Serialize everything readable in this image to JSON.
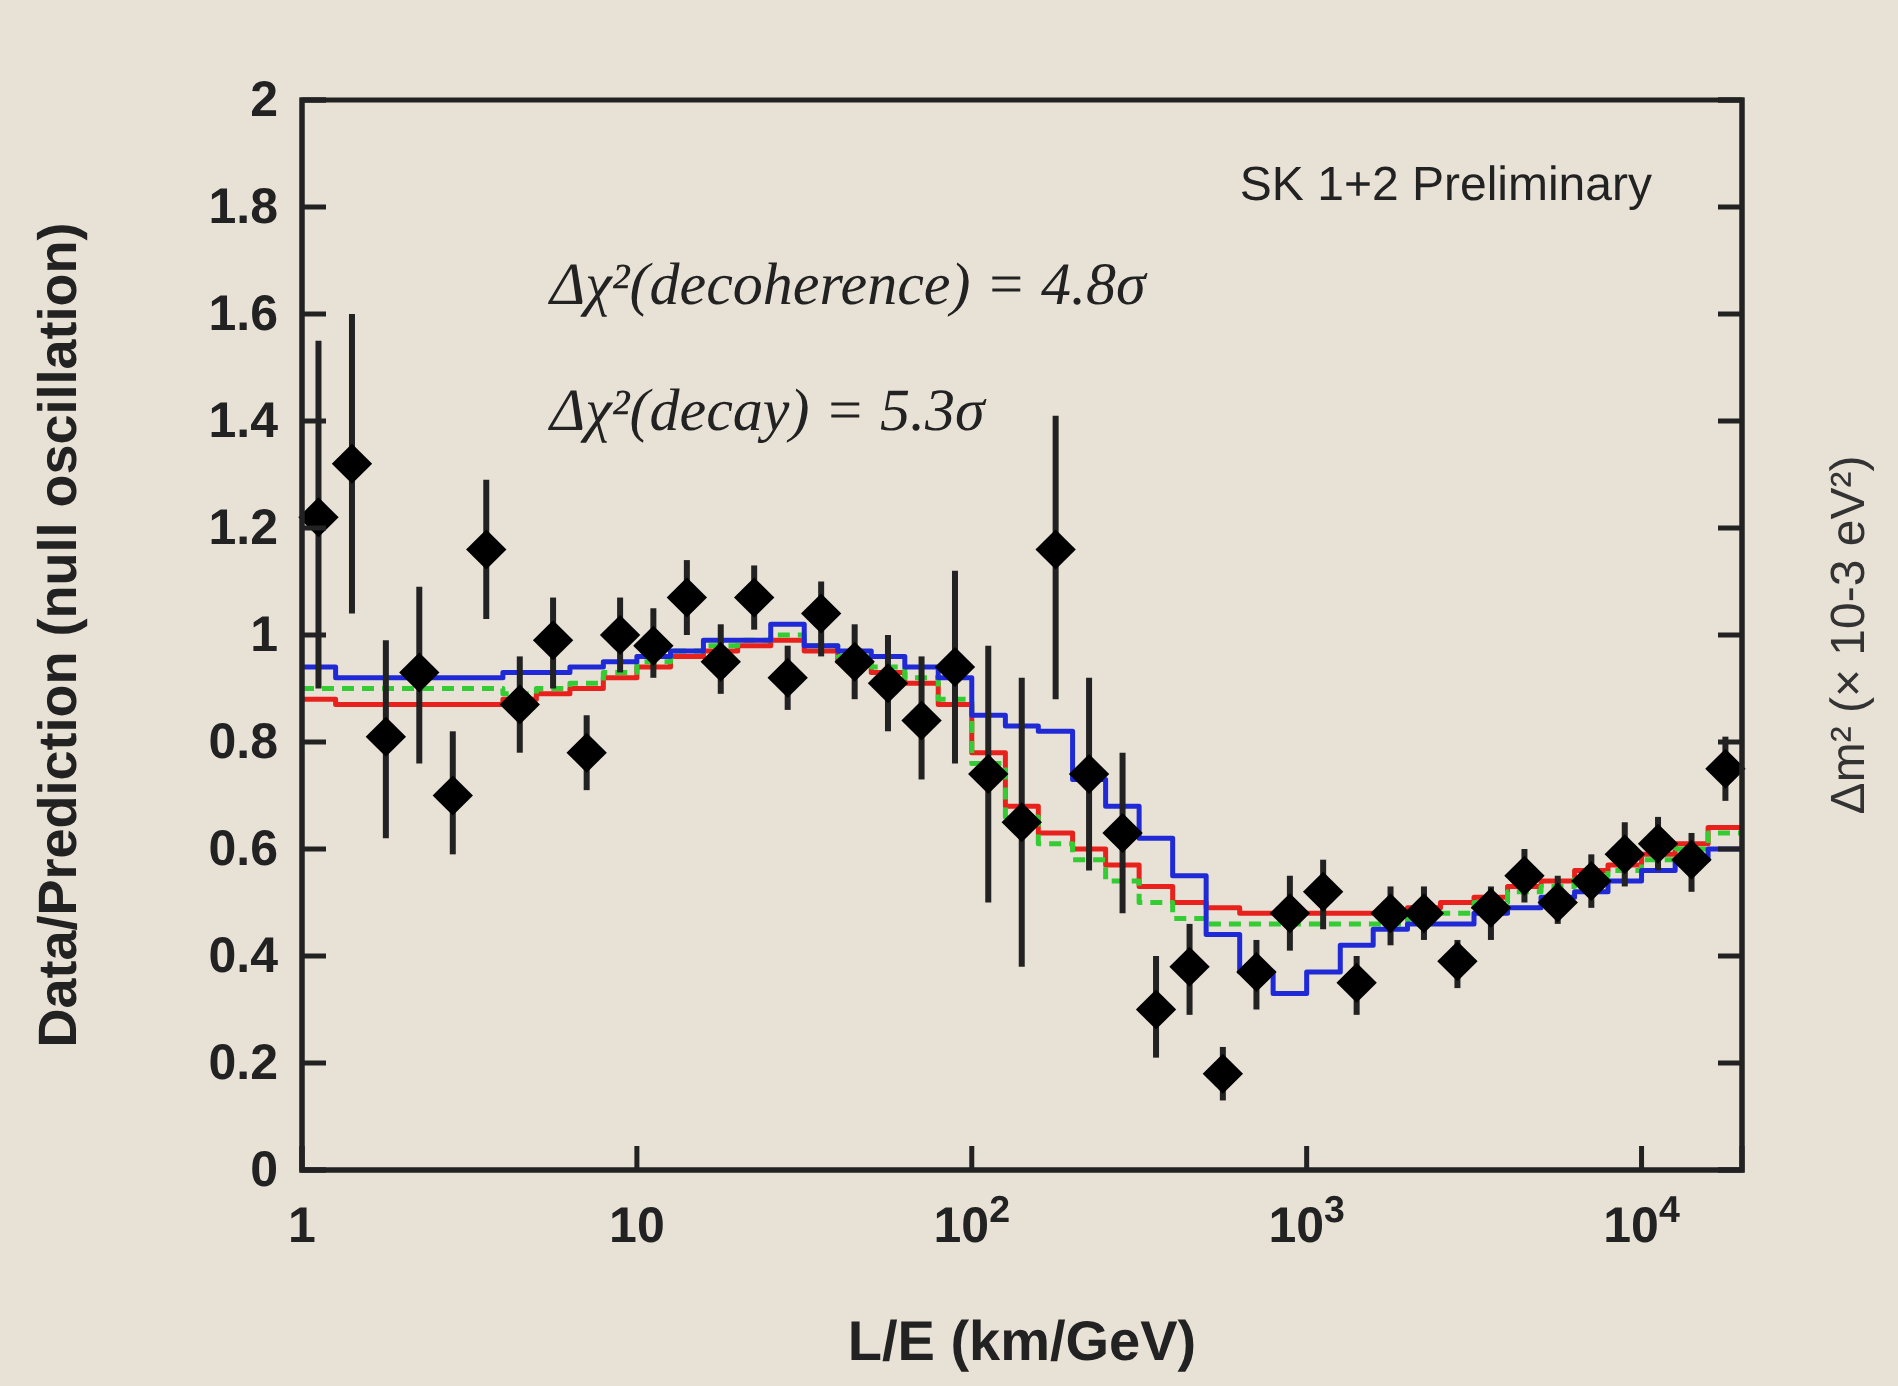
{
  "chart_data": {
    "type": "scatter",
    "xlabel": "L/E (km/GeV)",
    "ylabel": "Data/Prediction (null oscillation)",
    "y2label": "Δm² (× 10-3 eV²)",
    "annotations": [
      "SK 1+2 Preliminary",
      "Δχ²(decoherence) = 4.8σ",
      "Δχ²(decay) = 5.3σ"
    ],
    "log": "x",
    "xlim": [
      1,
      19950
    ],
    "ylim": [
      0,
      2
    ],
    "xticks": [
      1,
      10,
      {
        "value": 100,
        "label": "10$^{2}$"
      },
      {
        "value": 1000,
        "label": "10$^{3}$"
      },
      {
        "value": 10000,
        "label": "10$^{4}$"
      }
    ],
    "yticks": [
      0,
      0.2,
      0.4,
      0.6,
      0.8,
      1,
      1.2,
      1.4,
      1.6,
      1.8,
      2
    ],
    "series": [
      {
        "type": "step",
        "color": "#e8211c",
        "line_style": "solid",
        "x": [
          1,
          1.26,
          1.58,
          2,
          2.51,
          3.16,
          3.98,
          5.01,
          6.31,
          7.94,
          10,
          12.6,
          15.8,
          20,
          25.1,
          31.6,
          39.8,
          50.1,
          63.1,
          79.4,
          100,
          126,
          158,
          200,
          251,
          316,
          398,
          501,
          631,
          794,
          1000,
          1260,
          1580,
          2000,
          2510,
          3160,
          3980,
          5010,
          6310,
          7940,
          10000,
          12600,
          15800,
          19950
        ],
        "values": [
          0.88,
          0.87,
          0.87,
          0.87,
          0.87,
          0.87,
          0.88,
          0.89,
          0.9,
          0.92,
          0.94,
          0.96,
          0.97,
          0.98,
          0.99,
          0.97,
          0.95,
          0.93,
          0.91,
          0.87,
          0.78,
          0.68,
          0.63,
          0.6,
          0.57,
          0.53,
          0.5,
          0.49,
          0.48,
          0.48,
          0.48,
          0.48,
          0.48,
          0.49,
          0.5,
          0.51,
          0.53,
          0.54,
          0.56,
          0.57,
          0.59,
          0.61,
          0.64,
          0.64
        ]
      },
      {
        "type": "step",
        "color": "#33cc33",
        "line_style": "dashed",
        "x": [
          1,
          1.26,
          1.58,
          2,
          2.51,
          3.16,
          3.98,
          5.01,
          6.31,
          7.94,
          10,
          12.6,
          15.8,
          20,
          25.1,
          31.6,
          39.8,
          50.1,
          63.1,
          79.4,
          100,
          126,
          158,
          200,
          251,
          316,
          398,
          501,
          631,
          794,
          1000,
          1260,
          1580,
          2000,
          2510,
          3160,
          3980,
          5010,
          6310,
          7940,
          10000,
          12600,
          15800,
          19950
        ],
        "values": [
          0.9,
          0.9,
          0.9,
          0.9,
          0.9,
          0.9,
          0.89,
          0.9,
          0.91,
          0.93,
          0.95,
          0.97,
          0.98,
          0.99,
          1,
          0.98,
          0.96,
          0.94,
          0.92,
          0.88,
          0.76,
          0.66,
          0.61,
          0.58,
          0.54,
          0.5,
          0.47,
          0.46,
          0.46,
          0.46,
          0.46,
          0.46,
          0.46,
          0.47,
          0.48,
          0.5,
          0.52,
          0.53,
          0.55,
          0.56,
          0.58,
          0.6,
          0.63,
          0.63
        ]
      },
      {
        "type": "step",
        "color": "#1f2ad6",
        "line_style": "solid",
        "x": [
          1,
          1.26,
          1.58,
          2,
          2.51,
          3.16,
          3.98,
          5.01,
          6.31,
          7.94,
          10,
          12.6,
          15.8,
          20,
          25.1,
          31.6,
          39.8,
          50.1,
          63.1,
          79.4,
          100,
          126,
          158,
          200,
          251,
          316,
          398,
          501,
          631,
          794,
          1000,
          1260,
          1580,
          2000,
          2510,
          3160,
          3980,
          5010,
          6310,
          7940,
          10000,
          12600,
          15800,
          19950
        ],
        "values": [
          0.94,
          0.92,
          0.92,
          0.92,
          0.92,
          0.92,
          0.93,
          0.93,
          0.94,
          0.95,
          0.96,
          0.97,
          0.99,
          0.99,
          1.02,
          0.98,
          0.97,
          0.96,
          0.94,
          0.92,
          0.85,
          0.83,
          0.82,
          0.73,
          0.68,
          0.62,
          0.55,
          0.44,
          0.37,
          0.33,
          0.37,
          0.42,
          0.45,
          0.46,
          0.46,
          0.48,
          0.49,
          0.51,
          0.52,
          0.54,
          0.56,
          0.58,
          0.6,
          0.6
        ]
      },
      {
        "color": "#000000",
        "marker": "diamond",
        "x": [
          1.12,
          1.41,
          1.78,
          2.24,
          2.82,
          3.55,
          4.47,
          5.62,
          7.08,
          8.91,
          11.2,
          14.1,
          17.8,
          22.4,
          28.2,
          35.5,
          44.7,
          56.2,
          70.8,
          89.1,
          112,
          141,
          178,
          224,
          282,
          355,
          447,
          562,
          708,
          891,
          1120,
          1410,
          1780,
          2240,
          2820,
          3550,
          4470,
          5620,
          7080,
          8910,
          11200,
          14100,
          17800
        ],
        "values": [
          1.22,
          1.32,
          0.81,
          0.93,
          0.7,
          1.16,
          0.87,
          0.99,
          0.78,
          1,
          0.98,
          1.07,
          0.95,
          1.07,
          0.92,
          1.04,
          0.95,
          0.91,
          0.84,
          0.94,
          0.74,
          0.65,
          1.16,
          0.74,
          0.63,
          0.3,
          0.38,
          0.18,
          0.37,
          0.48,
          0.52,
          0.35,
          0.48,
          0.48,
          0.39,
          0.49,
          0.55,
          0.5,
          0.54,
          0.59,
          0.61,
          0.58,
          0.75
        ],
        "errors": [
          [
            0.9,
            1.55
          ],
          [
            1.04,
            1.6
          ],
          [
            0.62,
            0.99
          ],
          [
            0.76,
            1.09
          ],
          [
            0.59,
            0.82
          ],
          [
            1.03,
            1.29
          ],
          [
            0.78,
            0.96
          ],
          [
            0.9,
            1.07
          ],
          [
            0.71,
            0.85
          ],
          [
            0.93,
            1.07
          ],
          [
            0.92,
            1.05
          ],
          [
            1,
            1.14
          ],
          [
            0.89,
            1.02
          ],
          [
            1.01,
            1.13
          ],
          [
            0.86,
            0.98
          ],
          [
            0.96,
            1.1
          ],
          [
            0.88,
            1.02
          ],
          [
            0.82,
            1
          ],
          [
            0.73,
            0.96
          ],
          [
            0.76,
            1.12
          ],
          [
            0.5,
            0.98
          ],
          [
            0.38,
            0.92
          ],
          [
            0.88,
            1.41
          ],
          [
            0.56,
            0.92
          ],
          [
            0.48,
            0.78
          ],
          [
            0.21,
            0.4
          ],
          [
            0.29,
            0.46
          ],
          [
            0.13,
            0.23
          ],
          [
            0.3,
            0.43
          ],
          [
            0.41,
            0.55
          ],
          [
            0.45,
            0.58
          ],
          [
            0.29,
            0.4
          ],
          [
            0.42,
            0.53
          ],
          [
            0.43,
            0.53
          ],
          [
            0.34,
            0.43
          ],
          [
            0.43,
            0.53
          ],
          [
            0.5,
            0.6
          ],
          [
            0.46,
            0.55
          ],
          [
            0.49,
            0.59
          ],
          [
            0.53,
            0.65
          ],
          [
            0.56,
            0.66
          ],
          [
            0.52,
            0.63
          ],
          [
            0.69,
            0.81
          ]
        ]
      }
    ]
  }
}
